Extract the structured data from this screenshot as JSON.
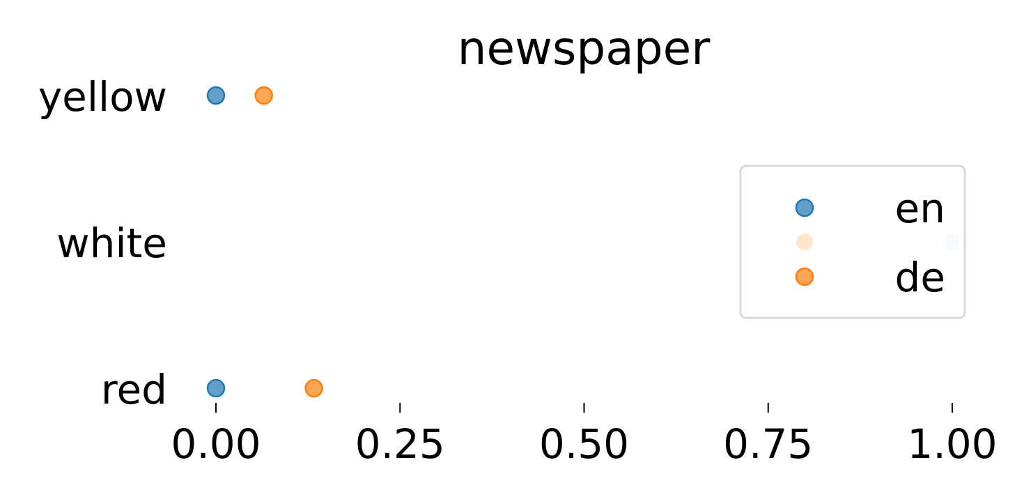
{
  "chart_data": {
    "type": "scatter",
    "title": "newspaper",
    "xlabel": "",
    "ylabel": "",
    "xlim": [
      0,
      1
    ],
    "x_ticks": [
      0.0,
      0.25,
      0.5,
      0.75,
      1.0
    ],
    "x_tick_labels": [
      "0.00",
      "0.25",
      "0.50",
      "0.75",
      "1.00"
    ],
    "categories": [
      "yellow",
      "white",
      "red"
    ],
    "grid": false,
    "legend_position": "right",
    "series": [
      {
        "name": "en",
        "color": "#1f77b4",
        "points": [
          {
            "category": "yellow",
            "x": 0.0
          },
          {
            "category": "red",
            "x": 0.0
          }
        ]
      },
      {
        "name": "",
        "color": "#ffe6cf",
        "points": []
      },
      {
        "name": "de",
        "color": "#ff7f0e",
        "points": [
          {
            "category": "yellow",
            "x": 0.065
          },
          {
            "category": "red",
            "x": 0.133
          }
        ]
      }
    ],
    "extra_points": [
      {
        "category": "white",
        "x": 1.0,
        "color": "#dce8f3"
      }
    ]
  }
}
